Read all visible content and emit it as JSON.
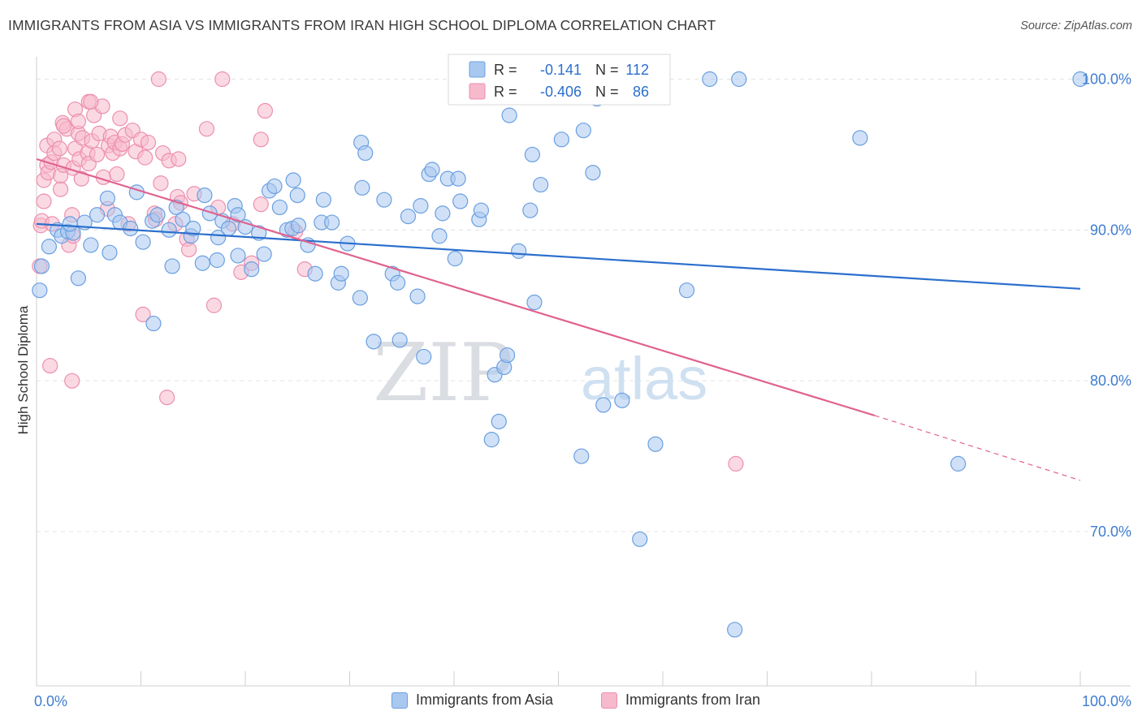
{
  "title": "IMMIGRANTS FROM ASIA VS IMMIGRANTS FROM IRAN HIGH SCHOOL DIPLOMA CORRELATION CHART",
  "source": "Source: ZipAtlas.com",
  "watermark": {
    "zip": "ZIP",
    "atlas": "atlas"
  },
  "colors": {
    "asia_fill": "#a9c8f0",
    "asia_stroke": "#6a9fe0",
    "asia_line": "#2b6fcd",
    "iran_fill": "#f7b9cc",
    "iran_stroke": "#ec8fae",
    "iran_line": "#e0628f",
    "axis_text_blue": "#3f7dd0"
  },
  "legend_top": [
    {
      "r_label": "R =",
      "r_value": "-0.141",
      "n_label": "N =",
      "n_value": "112"
    },
    {
      "r_label": "R =",
      "r_value": "-0.406",
      "n_label": "N =",
      "n_value": "86"
    }
  ],
  "legend_bottom": [
    "Immigrants from Asia",
    "Immigrants from Iran"
  ],
  "chart_data": {
    "type": "scatter",
    "title": "IMMIGRANTS FROM ASIA VS IMMIGRANTS FROM IRAN HIGH SCHOOL DIPLOMA CORRELATION CHART",
    "xlabel": "",
    "ylabel": "High School Diploma",
    "xlim": [
      0,
      100
    ],
    "ylim": [
      61.5,
      101
    ],
    "x_tick_labels": [
      "0.0%",
      "100.0%"
    ],
    "y_ticks": [
      70,
      80,
      90,
      100
    ],
    "y_tick_labels": [
      "70.0%",
      "80.0%",
      "90.0%",
      "100.0%"
    ],
    "series": [
      {
        "name": "Immigrants from Asia",
        "r": -0.141,
        "n": 112,
        "trend": {
          "x0": 0,
          "y0": 90.4,
          "x1": 100,
          "y1": 86.1
        },
        "points": [
          [
            0.3,
            86
          ],
          [
            0.5,
            87.6
          ],
          [
            1.2,
            88.9
          ],
          [
            2,
            90
          ],
          [
            2.4,
            89.6
          ],
          [
            3,
            89.9
          ],
          [
            3.5,
            89.8
          ],
          [
            3.2,
            90.4
          ],
          [
            4.6,
            90.5
          ],
          [
            5.2,
            89
          ],
          [
            5.8,
            91
          ],
          [
            6.8,
            92.1
          ],
          [
            7,
            88.5
          ],
          [
            7.5,
            91
          ],
          [
            8,
            90.5
          ],
          [
            9,
            90.1
          ],
          [
            10.2,
            89.2
          ],
          [
            11.1,
            90.6
          ],
          [
            11.2,
            83.8
          ],
          [
            11.6,
            91
          ],
          [
            12.7,
            90
          ],
          [
            13,
            87.6
          ],
          [
            13.4,
            91.5
          ],
          [
            14,
            90.7
          ],
          [
            14.8,
            89.6
          ],
          [
            15,
            90.1
          ],
          [
            15.9,
            87.8
          ],
          [
            16.1,
            92.3
          ],
          [
            16.6,
            91.1
          ],
          [
            17.3,
            88
          ],
          [
            17.4,
            89.5
          ],
          [
            17.8,
            90.6
          ],
          [
            18.4,
            90.1
          ],
          [
            19,
            91.6
          ],
          [
            19.3,
            91
          ],
          [
            20,
            90.2
          ],
          [
            20.6,
            87.4
          ],
          [
            21.3,
            89.8
          ],
          [
            21.8,
            88.4
          ],
          [
            22.3,
            92.6
          ],
          [
            22.8,
            92.9
          ],
          [
            23.3,
            91.5
          ],
          [
            24,
            90
          ],
          [
            24.5,
            90.1
          ],
          [
            25.1,
            90.3
          ],
          [
            25,
            92.3
          ],
          [
            26,
            89
          ],
          [
            26.7,
            87.1
          ],
          [
            27.3,
            90.5
          ],
          [
            27.5,
            92
          ],
          [
            28.3,
            90.5
          ],
          [
            28.9,
            86.5
          ],
          [
            29.2,
            87.1
          ],
          [
            29.8,
            89.1
          ],
          [
            31,
            85.5
          ],
          [
            31.1,
            95.8
          ],
          [
            31.5,
            95.1
          ],
          [
            32.3,
            82.6
          ],
          [
            31.2,
            92.8
          ],
          [
            33.3,
            92
          ],
          [
            34.1,
            87.1
          ],
          [
            34.6,
            86.5
          ],
          [
            34.8,
            82.7
          ],
          [
            35.6,
            90.9
          ],
          [
            36.5,
            85.6
          ],
          [
            36.8,
            91.6
          ],
          [
            37.1,
            81.6
          ],
          [
            37.6,
            93.7
          ],
          [
            37.9,
            94
          ],
          [
            38.6,
            89.6
          ],
          [
            38.9,
            91.1
          ],
          [
            39.4,
            93.4
          ],
          [
            40.1,
            88.1
          ],
          [
            40.4,
            93.4
          ],
          [
            40.6,
            91.9
          ],
          [
            42.4,
            90.7
          ],
          [
            42.6,
            91.3
          ],
          [
            43.6,
            76.1
          ],
          [
            43.9,
            80.4
          ],
          [
            44.3,
            77.3
          ],
          [
            44.8,
            80.9
          ],
          [
            45.1,
            81.7
          ],
          [
            45.3,
            97.6
          ],
          [
            46.2,
            88.6
          ],
          [
            47.3,
            91.3
          ],
          [
            47.5,
            95
          ],
          [
            47.7,
            85.2
          ],
          [
            48.3,
            93
          ],
          [
            50.3,
            96
          ],
          [
            50.3,
            98.8
          ],
          [
            52.2,
            75
          ],
          [
            52.4,
            96.6
          ],
          [
            53.3,
            93.8
          ],
          [
            53.7,
            98.7
          ],
          [
            54.3,
            78.4
          ],
          [
            56.1,
            78.7
          ],
          [
            57.8,
            69.5
          ],
          [
            59.3,
            75.8
          ],
          [
            62.3,
            86
          ],
          [
            64.5,
            100
          ],
          [
            66.9,
            63.5
          ],
          [
            67.3,
            100
          ],
          [
            78.9,
            96.1
          ],
          [
            88.3,
            74.5
          ],
          [
            100,
            100
          ],
          [
            4,
            86.8
          ],
          [
            9.6,
            92.5
          ],
          [
            24.6,
            93.3
          ],
          [
            19.3,
            88.3
          ]
        ]
      },
      {
        "name": "Immigrants from Iran",
        "r": -0.406,
        "n": 86,
        "trend": {
          "x0": 0,
          "y0": 94.7,
          "x1": 80.3,
          "y1": 77.7
        },
        "trend_dashed_to": {
          "x": 100,
          "y": 73.4
        },
        "points": [
          [
            0.3,
            87.6
          ],
          [
            0.4,
            90.3
          ],
          [
            0.5,
            90.6
          ],
          [
            0.7,
            91.9
          ],
          [
            0.7,
            93.3
          ],
          [
            1,
            94.3
          ],
          [
            1,
            95.6
          ],
          [
            1.1,
            93.8
          ],
          [
            1.3,
            81
          ],
          [
            1.4,
            94.5
          ],
          [
            1.5,
            90.4
          ],
          [
            1.7,
            95.1
          ],
          [
            1.7,
            96
          ],
          [
            2.2,
            95.4
          ],
          [
            2.3,
            92.7
          ],
          [
            2.3,
            93.6
          ],
          [
            2.5,
            97.1
          ],
          [
            2.6,
            94.3
          ],
          [
            2.9,
            96.7
          ],
          [
            3.1,
            89
          ],
          [
            3.4,
            80
          ],
          [
            3.4,
            91
          ],
          [
            3.5,
            89.6
          ],
          [
            3.5,
            94.1
          ],
          [
            3.7,
            95.4
          ],
          [
            3.7,
            98
          ],
          [
            4,
            96.4
          ],
          [
            4,
            97.2
          ],
          [
            4.1,
            94.7
          ],
          [
            4.3,
            93.4
          ],
          [
            4.4,
            96.1
          ],
          [
            4.9,
            95.1
          ],
          [
            5,
            98.5
          ],
          [
            5,
            94.4
          ],
          [
            5.3,
            95.9
          ],
          [
            5.5,
            97.6
          ],
          [
            5.8,
            95
          ],
          [
            6,
            96.4
          ],
          [
            6.3,
            98.2
          ],
          [
            6.4,
            93.5
          ],
          [
            6.8,
            91.4
          ],
          [
            6.9,
            95.6
          ],
          [
            7.1,
            96.2
          ],
          [
            7.3,
            95.1
          ],
          [
            7.5,
            95.8
          ],
          [
            7.7,
            93.7
          ],
          [
            8,
            97.4
          ],
          [
            8,
            95.4
          ],
          [
            8.2,
            95.7
          ],
          [
            8.5,
            96.3
          ],
          [
            8.8,
            90.4
          ],
          [
            9.2,
            96.6
          ],
          [
            9.5,
            95.2
          ],
          [
            10,
            96
          ],
          [
            10.2,
            84.4
          ],
          [
            10.4,
            94.8
          ],
          [
            10.7,
            95.8
          ],
          [
            11.3,
            91.1
          ],
          [
            11.4,
            90.7
          ],
          [
            11.7,
            100
          ],
          [
            11.9,
            93.1
          ],
          [
            12.1,
            95.1
          ],
          [
            12.5,
            78.9
          ],
          [
            12.7,
            94.6
          ],
          [
            13.3,
            90.4
          ],
          [
            13.5,
            92.2
          ],
          [
            13.6,
            94.7
          ],
          [
            13.8,
            91.8
          ],
          [
            14.4,
            89.4
          ],
          [
            14.6,
            88.7
          ],
          [
            15.1,
            92.4
          ],
          [
            16.3,
            96.7
          ],
          [
            17,
            85
          ],
          [
            17.4,
            91.5
          ],
          [
            17.8,
            100
          ],
          [
            18.8,
            90.4
          ],
          [
            19.6,
            87.2
          ],
          [
            20.6,
            87.8
          ],
          [
            21.5,
            91.7
          ],
          [
            21.5,
            96
          ],
          [
            21.9,
            97.9
          ],
          [
            24.8,
            89.9
          ],
          [
            25.7,
            87.4
          ],
          [
            67,
            74.5
          ],
          [
            5.2,
            98.5
          ],
          [
            2.6,
            96.9
          ]
        ]
      }
    ]
  }
}
